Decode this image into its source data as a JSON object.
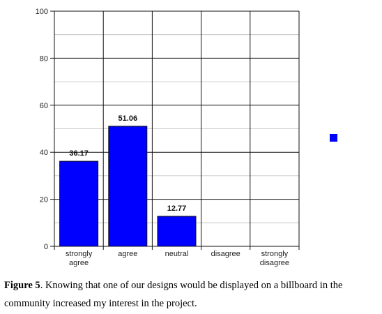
{
  "chart_data": {
    "type": "bar",
    "categories": [
      [
        "strongly",
        "agree"
      ],
      [
        "agree"
      ],
      [
        "neutral"
      ],
      [
        "disagree"
      ],
      [
        "strongly",
        "disagree"
      ]
    ],
    "values": [
      36.17,
      51.06,
      12.77,
      0,
      0
    ],
    "data_labels": [
      "36.17",
      "51.06",
      "12.77",
      "",
      ""
    ],
    "ylim": [
      0,
      100
    ],
    "yticks": [
      0,
      20,
      40,
      60,
      80,
      100
    ],
    "grid": true,
    "bar_color": "#0000ff",
    "legend": {
      "placement": "right",
      "color": "#0000ff",
      "label": ""
    },
    "title": "",
    "xlabel": "",
    "ylabel": ""
  },
  "caption": {
    "label": "Figure 5",
    "text": ".  Knowing that one of our designs would be displayed on a billboard in the community increased my interest in the project."
  }
}
